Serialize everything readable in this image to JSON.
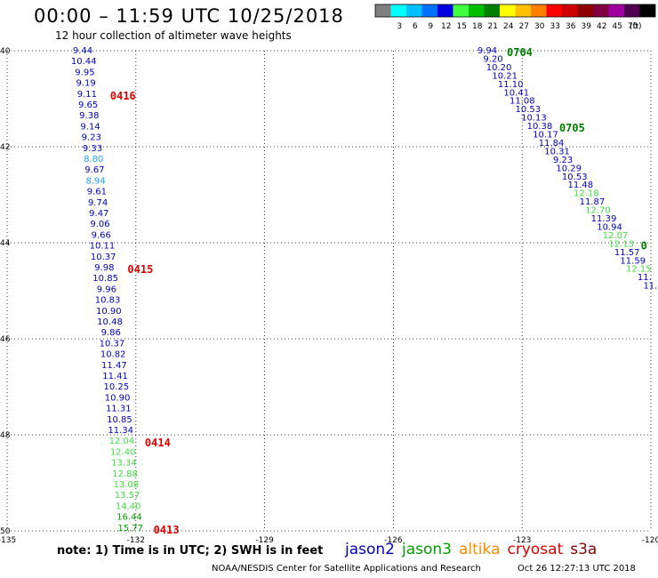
{
  "header": {
    "title": "00:00 – 11:59 UTC 10/25/2018",
    "subtitle": "12 hour collection of altimeter wave heights"
  },
  "legend": {
    "unit": "(ft)",
    "bins": [
      {
        "label": "",
        "color": "#7f7f7f"
      },
      {
        "label": "3",
        "color": "#00ffff"
      },
      {
        "label": "6",
        "color": "#00c0ff"
      },
      {
        "label": "9",
        "color": "#0070ff"
      },
      {
        "label": "12",
        "color": "#0000e0"
      },
      {
        "label": "15",
        "color": "#40ff40"
      },
      {
        "label": "18",
        "color": "#00c000"
      },
      {
        "label": "21",
        "color": "#008000"
      },
      {
        "label": "24",
        "color": "#ffff00"
      },
      {
        "label": "27",
        "color": "#ffc000"
      },
      {
        "label": "30",
        "color": "#ff8000"
      },
      {
        "label": "33",
        "color": "#ff0000"
      },
      {
        "label": "36",
        "color": "#d00000"
      },
      {
        "label": "39",
        "color": "#900000"
      },
      {
        "label": "42",
        "color": "#800040"
      },
      {
        "label": "45",
        "color": "#a000a0"
      },
      {
        "label": "70",
        "color": "#500050"
      },
      {
        "label": "",
        "color": "#000000"
      }
    ]
  },
  "axes": {
    "lon_ticks": [
      -135,
      -132,
      -129,
      -126,
      -123,
      -120
    ],
    "lon_labels": [
      "-135",
      "-132",
      "-129",
      "-126",
      "-123",
      "-120"
    ],
    "lat_ticks": [
      40,
      42,
      44,
      46,
      48,
      50
    ],
    "lat_labels": [
      "40",
      "42",
      "44",
      "46",
      "48",
      "50"
    ],
    "lon_range": [
      -135,
      -120
    ],
    "lat_range": [
      40,
      50
    ]
  },
  "colors": {
    "jason2": "#0000c0",
    "jason3": "#00a000",
    "altika": "#ff8c00",
    "cryosat": "#e00000",
    "s3a": "#800000",
    "light_green": "#40e040",
    "light_blue": "#20a0ff",
    "time_red": "#e00000",
    "time_green": "#008000"
  },
  "track_west": {
    "values": [
      {
        "t": "9.44",
        "c": "b"
      },
      {
        "t": "10.44",
        "c": "b"
      },
      {
        "t": "9.95",
        "c": "b"
      },
      {
        "t": "9.19",
        "c": "b"
      },
      {
        "t": "9.11",
        "c": "b"
      },
      {
        "t": "9.65",
        "c": "b"
      },
      {
        "t": "9.38",
        "c": "b"
      },
      {
        "t": "9.14",
        "c": "b"
      },
      {
        "t": "9.23",
        "c": "b"
      },
      {
        "t": "9.33",
        "c": "b"
      },
      {
        "t": "8.80",
        "c": "lb"
      },
      {
        "t": "9.67",
        "c": "b"
      },
      {
        "t": "8.94",
        "c": "lb"
      },
      {
        "t": "9.61",
        "c": "b"
      },
      {
        "t": "9.74",
        "c": "b"
      },
      {
        "t": "9.47",
        "c": "b"
      },
      {
        "t": "9.06",
        "c": "b"
      },
      {
        "t": "9.66",
        "c": "b"
      },
      {
        "t": "10.11",
        "c": "b"
      },
      {
        "t": "10.37",
        "c": "b"
      },
      {
        "t": "9.98",
        "c": "b"
      },
      {
        "t": "10.85",
        "c": "b"
      },
      {
        "t": "9.96",
        "c": "b"
      },
      {
        "t": "10.83",
        "c": "b"
      },
      {
        "t": "10.90",
        "c": "b"
      },
      {
        "t": "10.48",
        "c": "b"
      },
      {
        "t": "9.86",
        "c": "b"
      },
      {
        "t": "10.37",
        "c": "b"
      },
      {
        "t": "10.82",
        "c": "b"
      },
      {
        "t": "11.47",
        "c": "b"
      },
      {
        "t": "11.41",
        "c": "b"
      },
      {
        "t": "10.25",
        "c": "b"
      },
      {
        "t": "10.90",
        "c": "b"
      },
      {
        "t": "11.31",
        "c": "b"
      },
      {
        "t": "10.85",
        "c": "b"
      },
      {
        "t": "11.34",
        "c": "b"
      },
      {
        "t": "12.04",
        "c": "g"
      },
      {
        "t": "12.40",
        "c": "g"
      },
      {
        "t": "13.34",
        "c": "g"
      },
      {
        "t": "12.88",
        "c": "g"
      },
      {
        "t": "13.08",
        "c": "g"
      },
      {
        "t": "13.57",
        "c": "g"
      },
      {
        "t": "14.40",
        "c": "g"
      },
      {
        "t": "16.44",
        "c": "dg"
      },
      {
        "t": "15.77",
        "c": "dg"
      }
    ],
    "times": [
      {
        "t": "0416",
        "index": 4
      },
      {
        "t": "0415",
        "index": 20
      },
      {
        "t": "0414",
        "index": 36
      },
      {
        "t": "0413",
        "index": 44
      }
    ]
  },
  "track_east": {
    "values": [
      {
        "t": "9.94",
        "c": "b"
      },
      {
        "t": "9.20",
        "c": "b"
      },
      {
        "t": "10.20",
        "c": "b"
      },
      {
        "t": "10.21",
        "c": "b"
      },
      {
        "t": "11.10",
        "c": "b"
      },
      {
        "t": "10.41",
        "c": "b"
      },
      {
        "t": "11.08",
        "c": "b"
      },
      {
        "t": "10.53",
        "c": "b"
      },
      {
        "t": "10.13",
        "c": "b"
      },
      {
        "t": "10.38",
        "c": "b"
      },
      {
        "t": "10.17",
        "c": "b"
      },
      {
        "t": "11.84",
        "c": "b"
      },
      {
        "t": "10.31",
        "c": "b"
      },
      {
        "t": "9.23",
        "c": "b"
      },
      {
        "t": "10.29",
        "c": "b"
      },
      {
        "t": "10.53",
        "c": "b"
      },
      {
        "t": "11.48",
        "c": "b"
      },
      {
        "t": "12.18",
        "c": "g"
      },
      {
        "t": "11.87",
        "c": "b"
      },
      {
        "t": "12.70",
        "c": "g"
      },
      {
        "t": "11.39",
        "c": "b"
      },
      {
        "t": "10.94",
        "c": "b"
      },
      {
        "t": "12.07",
        "c": "g"
      },
      {
        "t": "12.13",
        "c": "g"
      },
      {
        "t": "11.57",
        "c": "b"
      },
      {
        "t": "11.59",
        "c": "b"
      },
      {
        "t": "12.15",
        "c": "g"
      },
      {
        "t": "11.",
        "c": "b"
      },
      {
        "t": "11.",
        "c": "b"
      }
    ],
    "times": [
      {
        "t": "0704",
        "index": 0
      },
      {
        "t": "0705",
        "index": 9
      },
      {
        "t": "0",
        "index": 23
      }
    ]
  },
  "footer": {
    "note": "note:  1) Time is in UTC;  2) SWH is in feet",
    "credit": "NOAA/NESDIS Center for Satellite Applications and Research",
    "date": "Oct 26 12:27:13 UTC 2018",
    "satellites": [
      {
        "name": "jason2",
        "color_key": "jason2"
      },
      {
        "name": "jason3",
        "color_key": "jason3"
      },
      {
        "name": "altika",
        "color_key": "altika"
      },
      {
        "name": "cryosat",
        "color_key": "cryosat"
      },
      {
        "name": "s3a",
        "color_key": "s3a"
      }
    ]
  }
}
